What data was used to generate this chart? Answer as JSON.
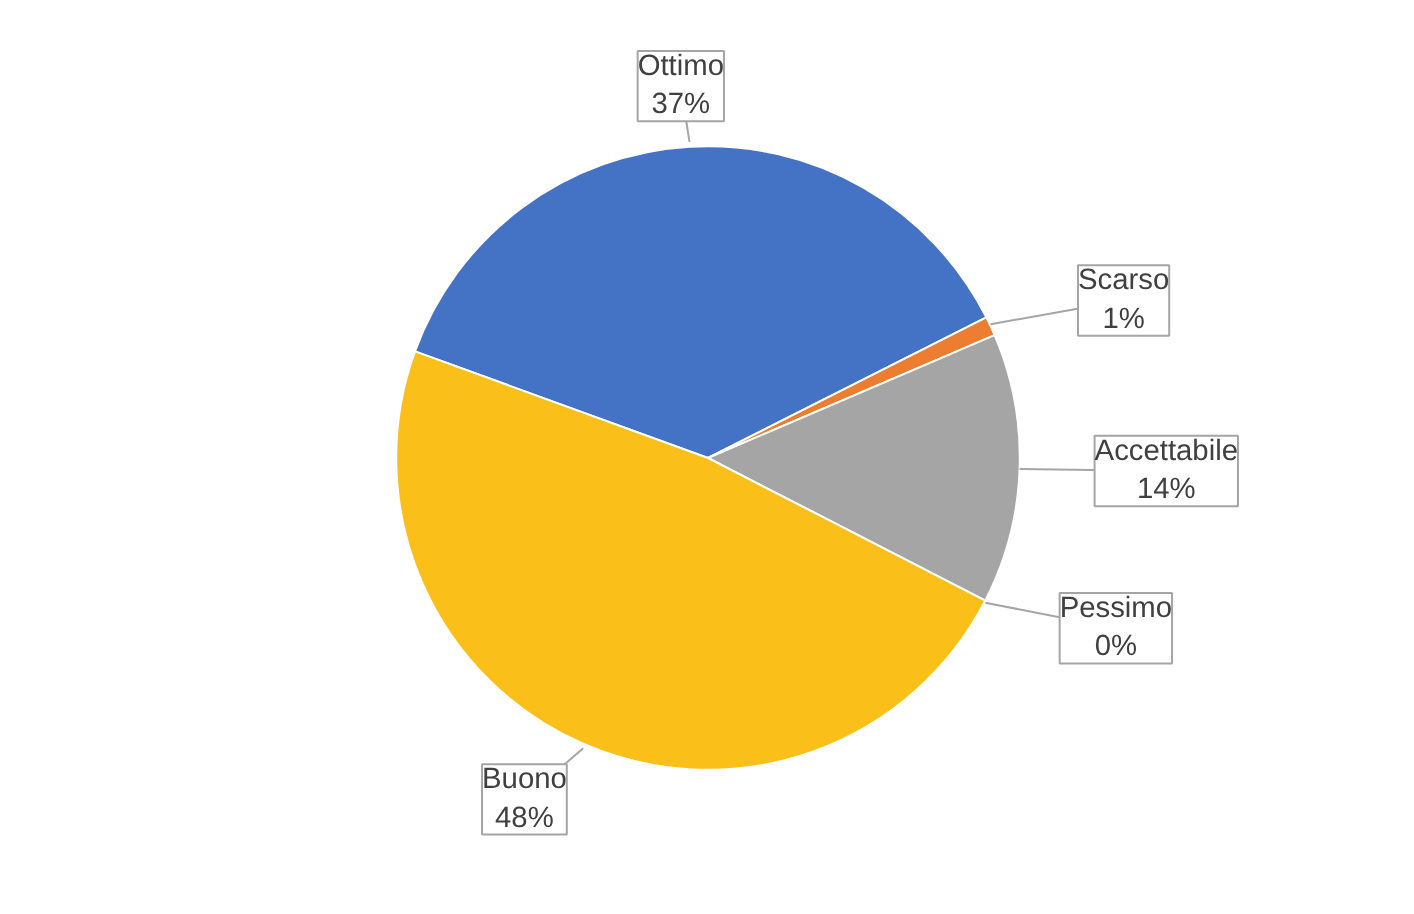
{
  "chart_data": {
    "type": "pie",
    "categories": [
      "Ottimo",
      "Scarso",
      "Accettabile",
      "Pessimo",
      "Buono"
    ],
    "values": [
      37,
      1,
      14,
      0,
      48
    ],
    "value_labels": [
      "37%",
      "1%",
      "14%",
      "0%",
      "48%"
    ],
    "colors": [
      "#4472c4",
      "#ed7d31",
      "#a5a5a5",
      "#5b9bd5",
      "#fbbf1a"
    ]
  }
}
